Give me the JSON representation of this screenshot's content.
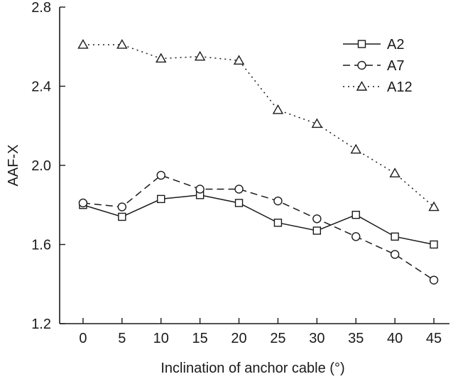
{
  "chart_data": {
    "type": "line",
    "xlabel": "Inclination of anchor cable (°)",
    "ylabel": "AAF-X",
    "x": [
      0,
      5,
      10,
      15,
      20,
      25,
      30,
      35,
      40,
      45
    ],
    "xlim": [
      -3,
      47
    ],
    "ylim": [
      1.2,
      2.8
    ],
    "xticks": [
      0,
      5,
      10,
      15,
      20,
      25,
      30,
      35,
      40,
      45
    ],
    "xtick_labels": [
      "0",
      "5",
      "10",
      "15",
      "20",
      "25",
      "30",
      "35",
      "40",
      "45"
    ],
    "yticks": [
      1.2,
      1.6,
      2.0,
      2.4,
      2.8
    ],
    "ytick_labels": [
      "1.2",
      "1.6",
      "2.0",
      "2.4",
      "2.8"
    ],
    "grid": false,
    "legend_position": "top-right",
    "series": [
      {
        "name": "A2",
        "marker": "square",
        "line_style": "solid",
        "values": [
          1.8,
          1.74,
          1.83,
          1.85,
          1.81,
          1.71,
          1.67,
          1.75,
          1.64,
          1.6
        ]
      },
      {
        "name": "A7",
        "marker": "circle",
        "line_style": "dashed",
        "values": [
          1.81,
          1.79,
          1.95,
          1.88,
          1.88,
          1.82,
          1.73,
          1.64,
          1.55,
          1.42
        ]
      },
      {
        "name": "A12",
        "marker": "triangle",
        "line_style": "dotted",
        "values": [
          2.61,
          2.61,
          2.54,
          2.55,
          2.53,
          2.28,
          2.21,
          2.08,
          1.96,
          1.79
        ]
      }
    ]
  }
}
